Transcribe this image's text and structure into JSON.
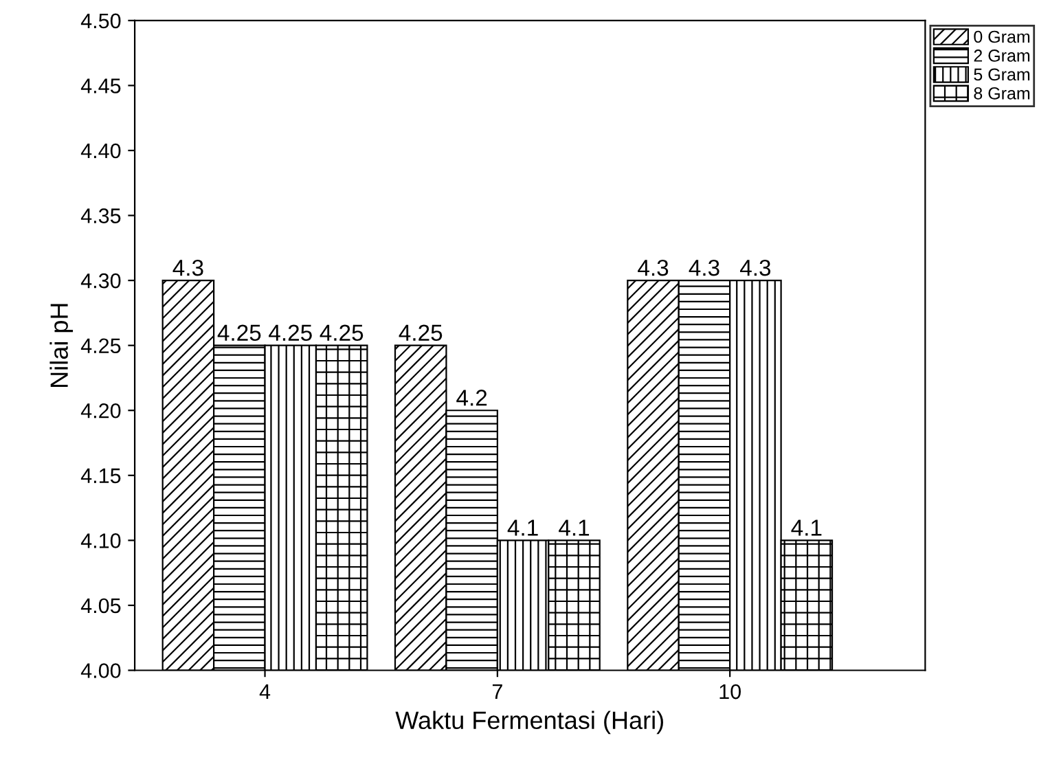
{
  "chart_data": {
    "type": "bar",
    "xlabel": "Waktu Fermentasi (Hari)",
    "ylabel": "Nilai pH",
    "categories": [
      "4",
      "7",
      "10"
    ],
    "series": [
      {
        "name": "0 Gram",
        "color": "#000000",
        "values": [
          4.3,
          4.25,
          4.3
        ]
      },
      {
        "name": "2 Gram",
        "color": "#000000",
        "values": [
          4.25,
          4.2,
          4.3
        ]
      },
      {
        "name": "5 Gram",
        "color": "#000000",
        "values": [
          4.25,
          4.1,
          4.3
        ]
      },
      {
        "name": "8 Gram",
        "color": "#000000",
        "values": [
          4.25,
          4.1,
          4.1
        ]
      }
    ],
    "ylim": [
      4.0,
      4.5
    ],
    "yticks": [
      {
        "value": 4.0,
        "label": "4.00"
      },
      {
        "value": 4.05,
        "label": "4.05"
      },
      {
        "value": 4.1,
        "label": "4.10"
      },
      {
        "value": 4.15,
        "label": "4.15"
      },
      {
        "value": 4.2,
        "label": "4.20"
      },
      {
        "value": 4.25,
        "label": "4.25"
      },
      {
        "value": 4.3,
        "label": "4.30"
      },
      {
        "value": 4.35,
        "label": "4.35"
      },
      {
        "value": 4.4,
        "label": "4.40"
      },
      {
        "value": 4.45,
        "label": "4.45"
      },
      {
        "value": 4.5,
        "label": "4.50"
      }
    ],
    "data_labels": true,
    "legend": "top right",
    "grid": false
  }
}
